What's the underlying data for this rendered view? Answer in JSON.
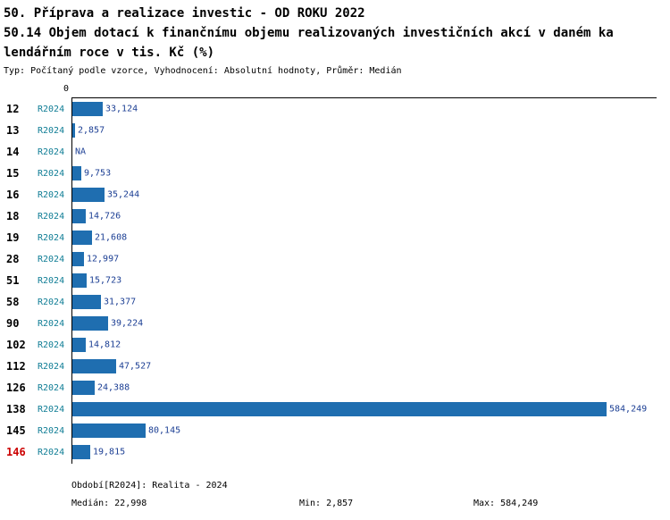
{
  "title": {
    "line1": "50. Příprava a realizace investic - OD ROKU 2022",
    "line2": "50.14 Objem dotací k finančnímu objemu realizovaných investičních akcí v daném ka",
    "line3": "lendářním roce v tis. Kč (%)",
    "meta": "Typ: Počítaný podle vzorce, Vyhodnocení: Absolutní hodnoty, Průměr: Medián"
  },
  "chart_data": {
    "type": "bar",
    "orientation": "horizontal",
    "title": "50.14 Objem dotací k finančnímu objemu realizovaných investičních akcí v daném kalendářním roce v tis. Kč (%)",
    "origin_tick_label": "0",
    "series_label": "R2024",
    "categories": [
      "12",
      "13",
      "14",
      "15",
      "16",
      "18",
      "19",
      "28",
      "51",
      "58",
      "90",
      "102",
      "112",
      "126",
      "138",
      "145",
      "146"
    ],
    "values": [
      33124,
      2857,
      null,
      9753,
      35244,
      14726,
      21608,
      12997,
      15723,
      31377,
      39224,
      14812,
      47527,
      24388,
      584249,
      80145,
      19815
    ],
    "value_labels": [
      "33,124",
      "2,857",
      "NA",
      "9,753",
      "35,244",
      "14,726",
      "21,608",
      "12,997",
      "15,723",
      "31,377",
      "39,224",
      "14,812",
      "47,527",
      "24,388",
      "584,249",
      "80,145",
      "19,815"
    ],
    "na_label": "NA",
    "xlim": [
      0,
      640000
    ],
    "grid": false,
    "legend_position": "none",
    "bar_color": "#1f6eb0",
    "series_label_color": "#0f7d95",
    "value_label_color": "#1c3f94",
    "highlight_categories": [
      "146"
    ],
    "highlight_color": "#cc0000"
  },
  "footer": {
    "period": "Období[R2024]: Realita - 2024",
    "median": "Medián: 22,998",
    "min": "Min: 2,857",
    "max": "Max: 584,249"
  }
}
